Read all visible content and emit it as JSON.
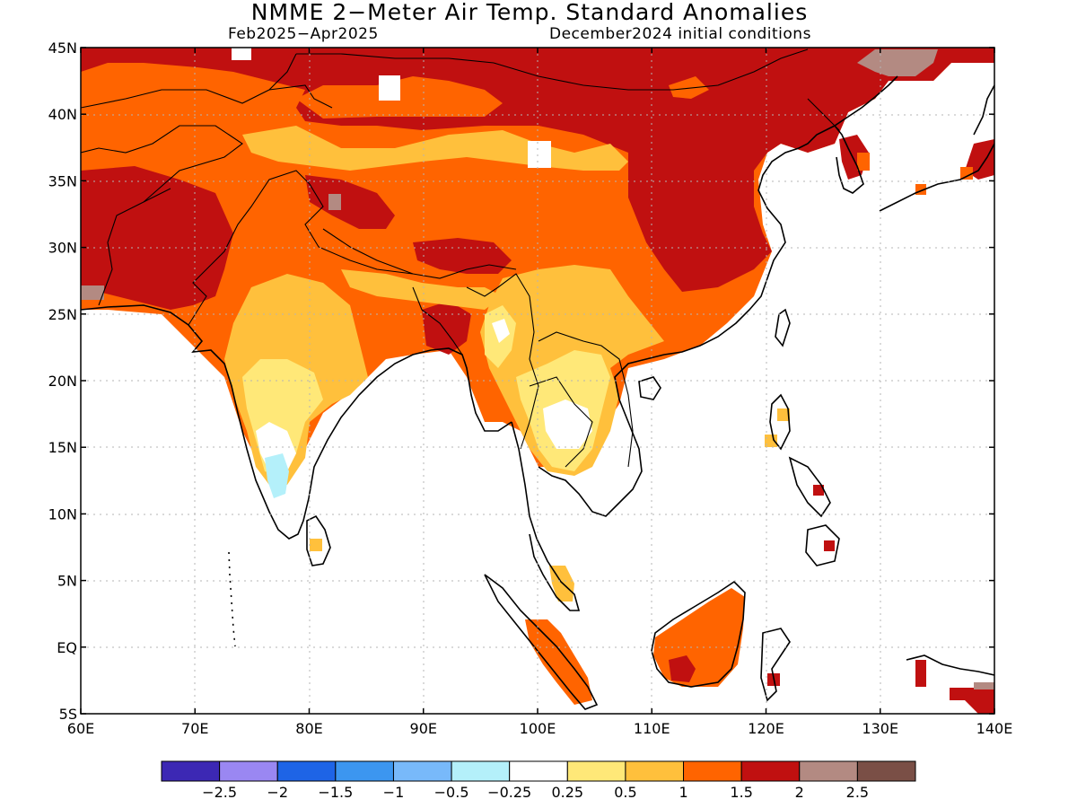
{
  "title": "NMME 2−Meter Air Temp. Standard Anomalies",
  "subtitle_left": "Feb2025−Apr2025",
  "subtitle_right": "December2024 initial conditions",
  "lat_labels": [
    "45N",
    "40N",
    "35N",
    "30N",
    "25N",
    "20N",
    "15N",
    "10N",
    "5N",
    "EQ",
    "5S"
  ],
  "lon_labels": [
    "60E",
    "70E",
    "80E",
    "90E",
    "100E",
    "110E",
    "120E",
    "130E",
    "140E"
  ],
  "colorbar": {
    "colors": [
      "#3c28b4",
      "#9a87f2",
      "#1e64e6",
      "#3c96f0",
      "#78b9fa",
      "#b4f0fa",
      "#ffffff",
      "#ffe878",
      "#ffc03c",
      "#ff6400",
      "#c01010",
      "#b38a82",
      "#7a4f46"
    ],
    "labels": [
      "−2.5",
      "−2",
      "−1.5",
      "−1",
      "−0.5",
      "−0.25",
      "0.25",
      "0.5",
      "1",
      "1.5",
      "2",
      "2.5"
    ]
  },
  "map_data": {
    "region": {
      "lon": [
        60,
        140
      ],
      "lat": [
        -5,
        45
      ]
    },
    "variable": "2-meter air temperature standardized anomaly",
    "dominant_anomaly": "1.5 to 2+ over China, Mongolia, Iran and Pakistan; 1 to 1.5 over the Tibetan plateau and India; 0.25 to 1 over peninsular India and Indochina",
    "ocean": "masked (white)"
  }
}
